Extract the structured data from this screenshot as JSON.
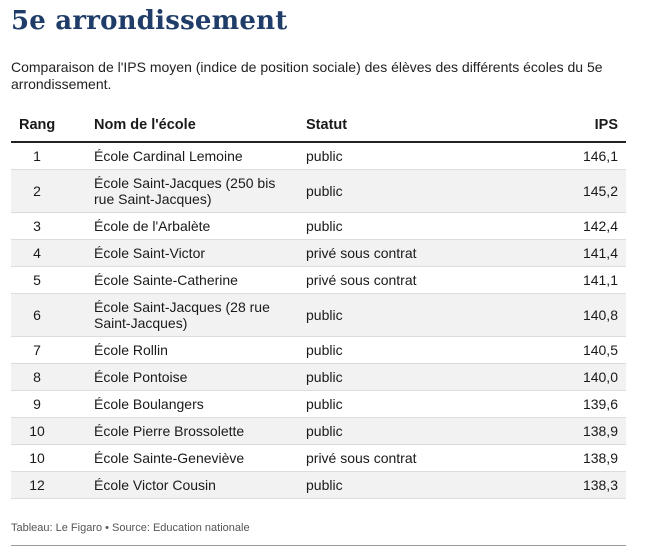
{
  "title": "5e arrondissement",
  "description": "Comparaison de l'IPS moyen (indice de position sociale) des élèves des différents écoles du 5e arrondissement.",
  "table": {
    "headers": [
      "Rang",
      "Nom de l'école",
      "Statut",
      "IPS"
    ],
    "rows": [
      {
        "rank": "1",
        "name": "École Cardinal Lemoine",
        "status": "public",
        "ips": "146,1"
      },
      {
        "rank": "2",
        "name": "École Saint-Jacques (250 bis rue Saint-Jacques)",
        "status": "public",
        "ips": "145,2"
      },
      {
        "rank": "3",
        "name": "École de l'Arbalète",
        "status": "public",
        "ips": "142,4"
      },
      {
        "rank": "4",
        "name": "École Saint-Victor",
        "status": "privé sous contrat",
        "ips": "141,4"
      },
      {
        "rank": "5",
        "name": "École Sainte-Catherine",
        "status": "privé sous contrat",
        "ips": "141,1"
      },
      {
        "rank": "6",
        "name": "École Saint-Jacques (28 rue Saint-Jacques)",
        "status": "public",
        "ips": "140,8"
      },
      {
        "rank": "7",
        "name": "École Rollin",
        "status": "public",
        "ips": "140,5"
      },
      {
        "rank": "8",
        "name": "École Pontoise",
        "status": "public",
        "ips": "140,0"
      },
      {
        "rank": "9",
        "name": "École Boulangers",
        "status": "public",
        "ips": "139,6"
      },
      {
        "rank": "10",
        "name": "École Pierre Brossolette",
        "status": "public",
        "ips": "138,9"
      },
      {
        "rank": "10",
        "name": "École Sainte-Geneviève",
        "status": "privé sous contrat",
        "ips": "138,9"
      },
      {
        "rank": "12",
        "name": "École Victor Cousin",
        "status": "public",
        "ips": "138,3"
      }
    ]
  },
  "footer": {
    "credit": "Tableau: Le Figaro",
    "separator": "•",
    "source": "Source: Education nationale"
  },
  "colors": {
    "title": "#1f3d68",
    "stripe": "#f2f2f2"
  }
}
